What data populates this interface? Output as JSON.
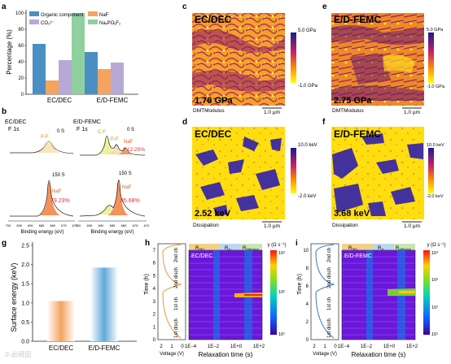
{
  "panels": {
    "a": {
      "letter": "a",
      "ylabel": "Percentage (%)",
      "yticks": [
        "0",
        "20",
        "40",
        "60",
        "80",
        "100"
      ],
      "groups": [
        "EC/DEC",
        "E/D-FEMC"
      ],
      "legend": [
        "Organic component",
        "NaF",
        "CO₃²⁻",
        "NaₓPOᵧF₂"
      ],
      "colors": [
        "#4a8fc4",
        "#f4a460",
        "#b7a9d6",
        "#8fd19e"
      ]
    },
    "b": {
      "letter": "b",
      "left_title": "EC/DEC",
      "right_title": "E/D-FEMC",
      "subtitle": "F 1s",
      "time_0s": "0 S",
      "time_150s": "150 S",
      "peak_pf": "P-F",
      "peak_cf": "C-F",
      "peak_naf": "NaF",
      "pct_left": "79.23%",
      "pct_right_top": "12.25%",
      "pct_right": "85.68%",
      "xlabel": "Binding energy (eV)",
      "xticks": [
        "700",
        "695",
        "690",
        "685",
        "680",
        "675",
        "670"
      ]
    },
    "c": {
      "letter": "c",
      "label": "EC/DEC",
      "value": "1.76 GPa",
      "channel": "DMTModulus",
      "scale": "1.0 µm",
      "cbar_top": "5.0 GPa",
      "cbar_bottom": "-1.0 GPa"
    },
    "d": {
      "letter": "d",
      "label": "EC/DEC",
      "value": "2.52 keV",
      "channel": "Dissipation",
      "scale": "1.0 µm",
      "cbar_top": "10.0 keV",
      "cbar_bottom": "-2.0 keV"
    },
    "e": {
      "letter": "e",
      "label": "E/D-FEMC",
      "value": "2.75 GPa",
      "channel": "DMTModulus",
      "scale": "1.0 µm",
      "cbar_top": "5.0 GPa",
      "cbar_bottom": "-1.0 GPa"
    },
    "f": {
      "letter": "f",
      "label": "E/D-FEMC",
      "value": "3.68 keV",
      "channel": "Dissipation",
      "scale": "1.0 µm",
      "cbar_top": "10.0 keV",
      "cbar_bottom": "-2.0 keV"
    },
    "g": {
      "letter": "g",
      "ylabel": "Surface energy (keV)",
      "yticks": [
        "0.0",
        "0.5",
        "1.0",
        "1.5",
        "2.0",
        "2.5"
      ]
    },
    "h": {
      "letter": "h",
      "title": "EC/DEC",
      "ylabel": "Time (h)",
      "yticks": [
        "0",
        "1",
        "2",
        "3",
        "4",
        "5",
        "6",
        "7"
      ],
      "v_xlabel": "Voltage (V)",
      "v_xticks": [
        "2",
        "1",
        "0"
      ],
      "xlabel": "Relaxation time (s)",
      "xticks": [
        "1E−4",
        "1E−2",
        "1E+0",
        "1E+2"
      ],
      "regions": [
        "R",
        "R",
        "R"
      ],
      "region_subs": [
        "SEI",
        "ct",
        "Diffusion"
      ],
      "cycle_labels": [
        "1st disch",
        "1st ch",
        "2nd disch",
        "2nd ch"
      ],
      "cbar_title": "γ (Ω s⁻¹)",
      "cbar_ticks": [
        "10³",
        "10²",
        "10¹"
      ]
    },
    "i": {
      "letter": "i",
      "title": "E/D-FEMC",
      "ylabel": "Time (h)",
      "yticks": [
        "0",
        "2",
        "4",
        "6",
        "8",
        "10"
      ],
      "v_xlabel": "Voltage (V)",
      "v_xticks": [
        "2",
        "1",
        "0"
      ],
      "xlabel": "Relaxation time (s)",
      "xticks": [
        "1E−4",
        "1E−2",
        "1E+0",
        "1E+2"
      ],
      "regions": [
        "R",
        "R",
        "R"
      ],
      "region_subs": [
        "SEI",
        "ct",
        "diffusion"
      ],
      "cycle_labels": [
        "1st disch",
        "1st ch",
        "2nd disch",
        "2nd ch"
      ],
      "cbar_title": "γ (Ω s⁻¹)",
      "cbar_ticks": [
        "10⁴",
        "10³",
        "10²",
        "10¹"
      ]
    }
  },
  "watermark": "© ̷云研园",
  "chart_data": [
    {
      "type": "bar",
      "panel": "a",
      "categories": [
        "EC/DEC",
        "E/D-FEMC"
      ],
      "series": [
        {
          "name": "Organic component",
          "values": [
            62,
            52
          ]
        },
        {
          "name": "NaF",
          "values": [
            17,
            31
          ]
        },
        {
          "name": "CO₃²⁻",
          "values": [
            42,
            39
          ]
        },
        {
          "name": "NaₓPOᵧF₂",
          "values": [
            100,
            null
          ]
        }
      ],
      "ylabel": "Percentage (%)",
      "ylim": [
        0,
        100
      ]
    },
    {
      "type": "bar",
      "panel": "g",
      "categories": [
        "EC/DEC",
        "E/D-FEMC"
      ],
      "values": [
        1.05,
        1.92
      ],
      "ylabel": "Surface energy (keV)",
      "ylim": [
        0,
        2.5
      ]
    }
  ]
}
